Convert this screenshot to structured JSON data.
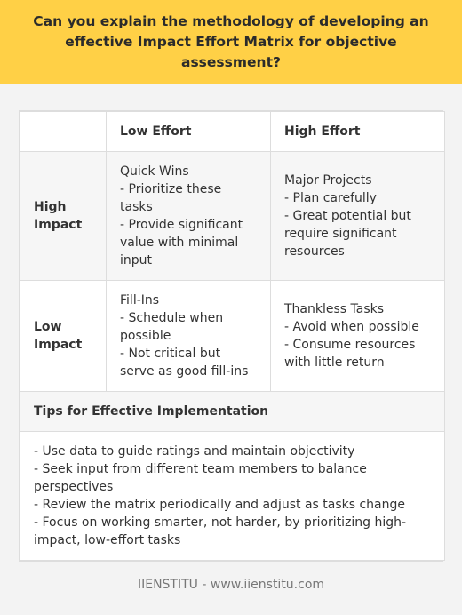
{
  "banner": {
    "title": "Can you explain the methodology of developing an effective Impact Effort Matrix for objective assessment?"
  },
  "matrix": {
    "columns": [
      "",
      "Low Effort",
      "High Effort"
    ],
    "rows": [
      {
        "label": "High Impact",
        "low_effort": "Quick Wins\n- Prioritize these tasks\n- Provide significant value with minimal input",
        "high_effort": "Major Projects\n- Plan carefully\n- Great potential but require significant resources"
      },
      {
        "label": "Low Impact",
        "low_effort": "Fill-Ins\n- Schedule when possible\n- Not critical but serve as good fill-ins",
        "high_effort": "Thankless Tasks\n- Avoid when possible\n- Consume resources with little return"
      }
    ],
    "tips": {
      "title": "Tips for Effective Implementation",
      "body": "- Use data to guide ratings and maintain objectivity\n- Seek input from different team members to balance perspectives\n- Review the matrix periodically and adjust as tasks change\n- Focus on working smarter, not harder, by prioritizing high-impact, low-effort tasks"
    }
  },
  "footer": {
    "text": "IIENSTITU - www.iienstitu.com"
  }
}
